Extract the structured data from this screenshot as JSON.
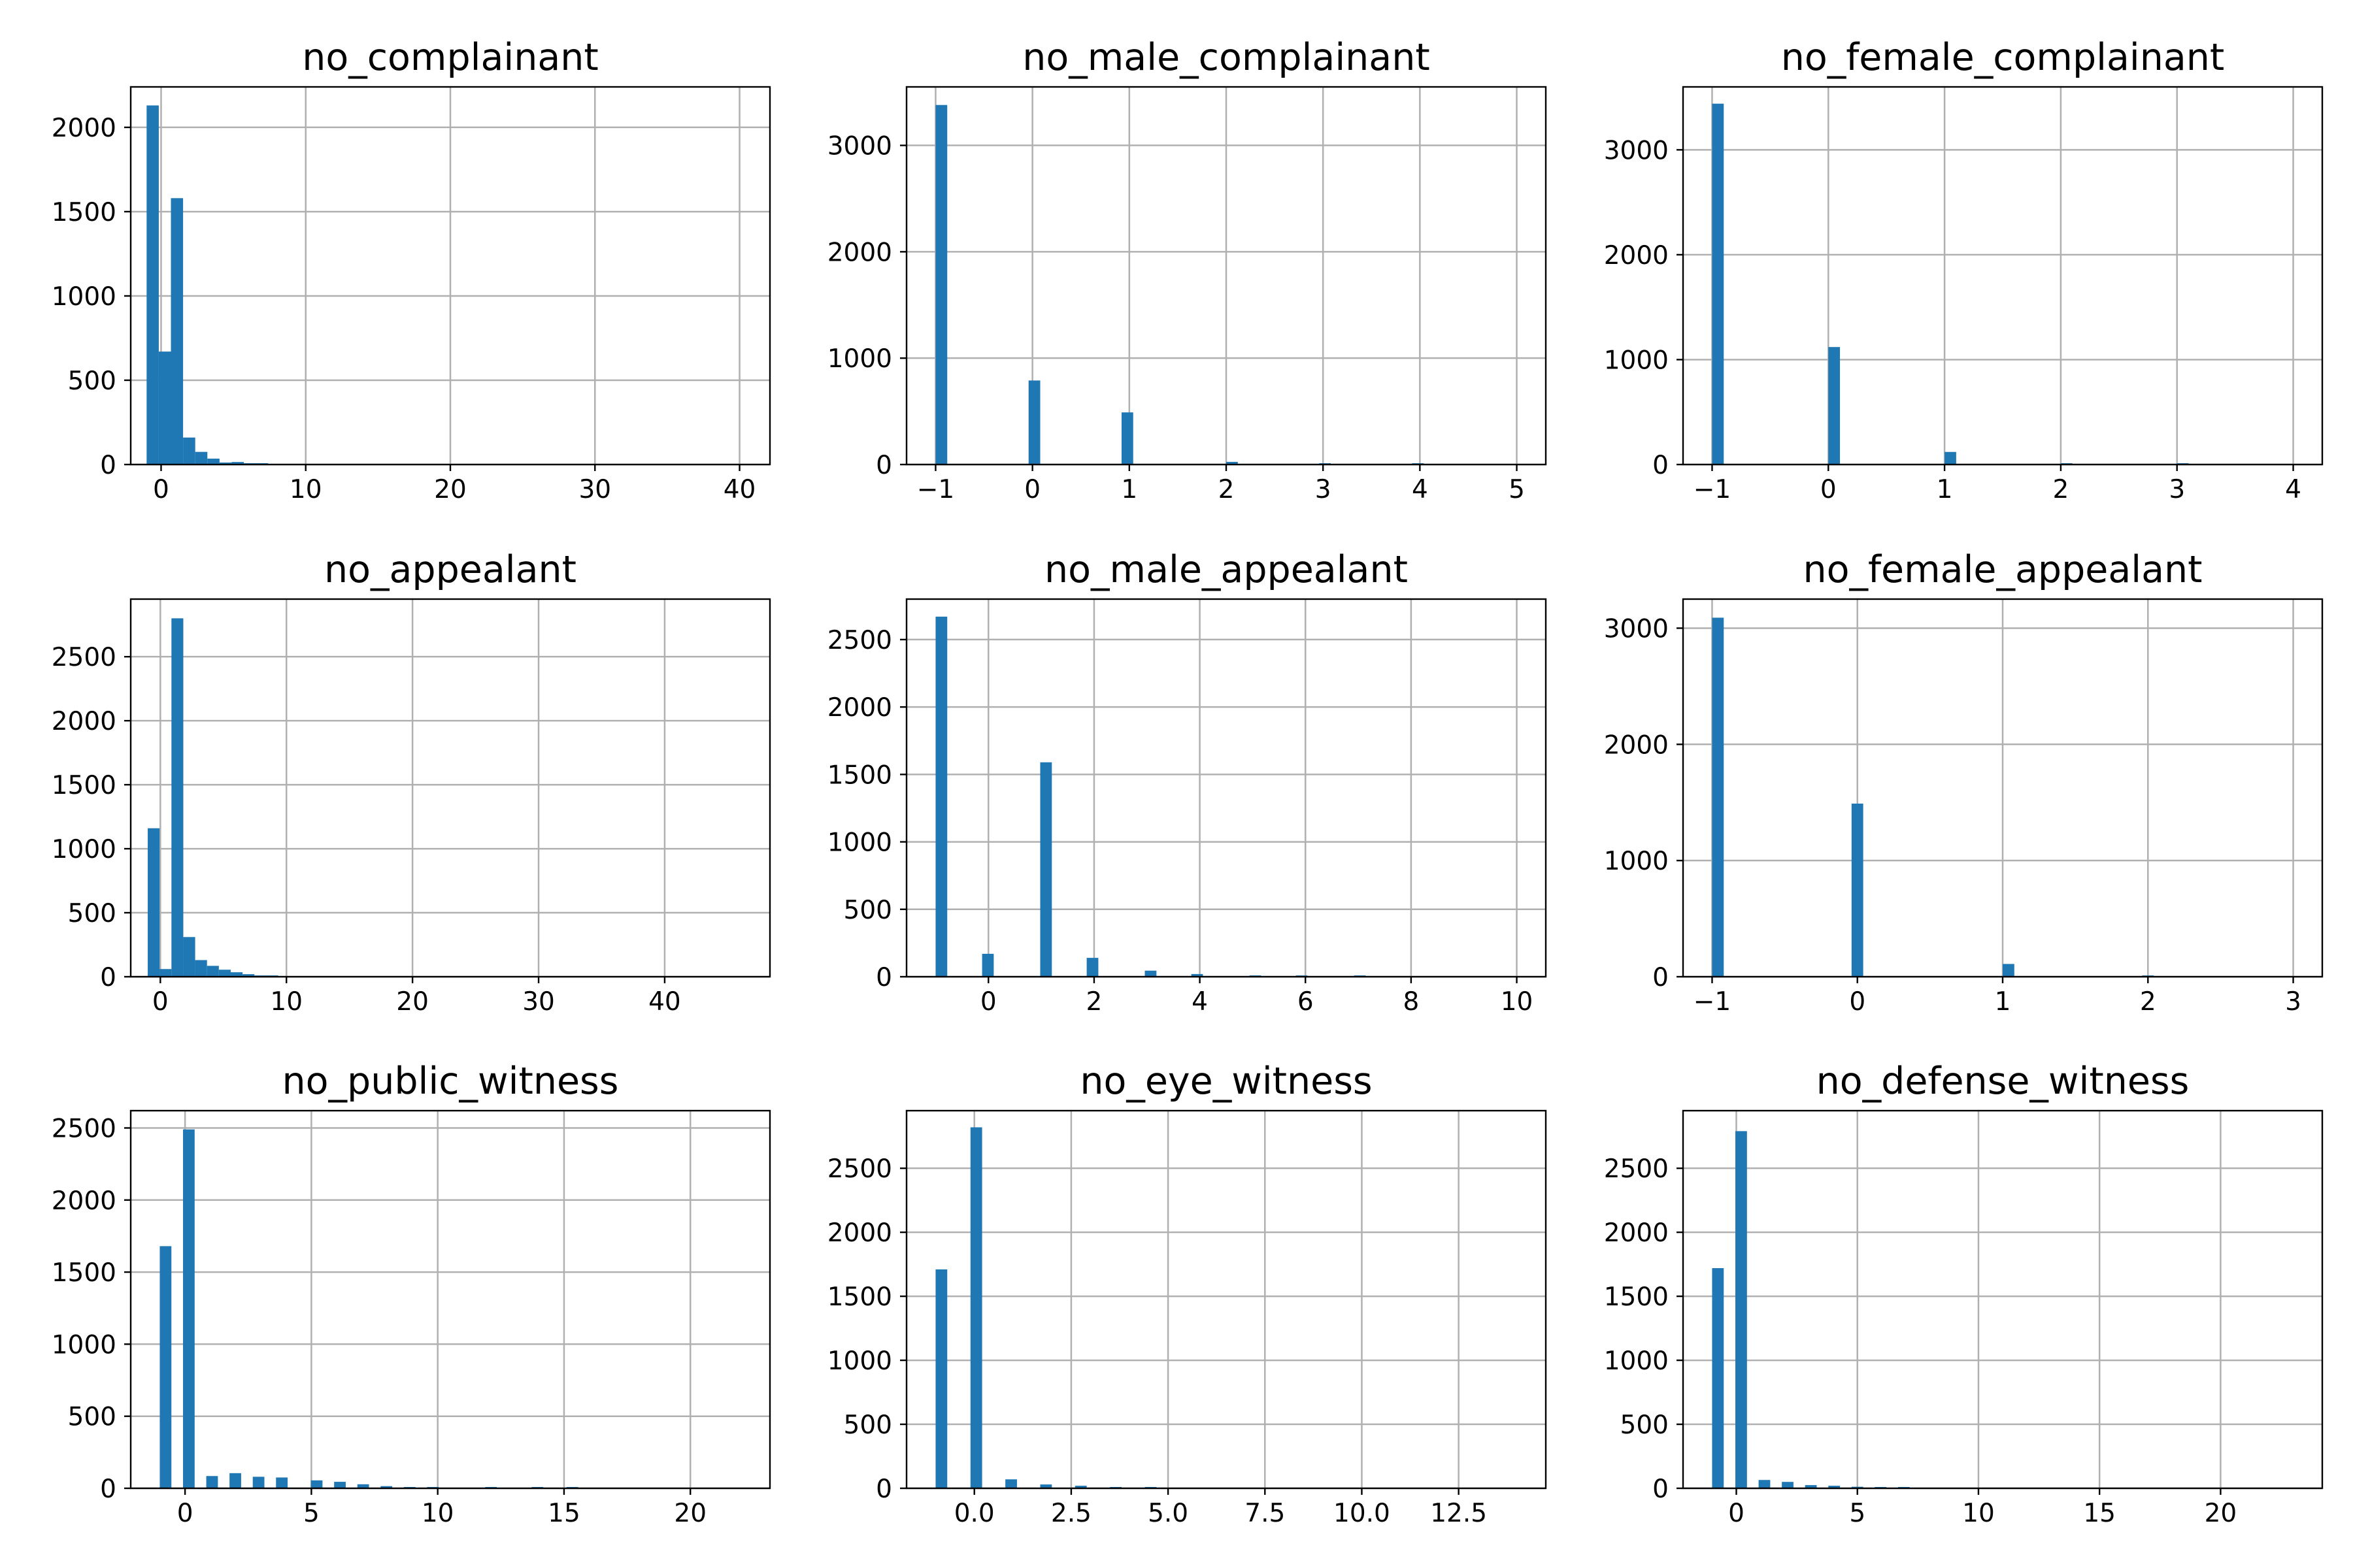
{
  "chart_data": [
    {
      "type": "bar",
      "title": "no_complainant",
      "xlim": [
        -2.1,
        42.1
      ],
      "ylim": [
        0,
        2240
      ],
      "xticks": [
        0,
        10,
        20,
        30,
        40
      ],
      "xtick_labels": [
        "0",
        "10",
        "20",
        "30",
        "40"
      ],
      "yticks": [
        0,
        500,
        1000,
        1500,
        2000
      ],
      "ytick_labels": [
        "0",
        "500",
        "1000",
        "1500",
        "2000"
      ],
      "bars": [
        {
          "x0": -1.0,
          "x1": -0.16,
          "value": 2130
        },
        {
          "x0": -0.16,
          "x1": 0.68,
          "value": 670
        },
        {
          "x0": 0.68,
          "x1": 1.52,
          "value": 1580
        },
        {
          "x0": 1.52,
          "x1": 2.36,
          "value": 160
        },
        {
          "x0": 2.36,
          "x1": 3.2,
          "value": 75
        },
        {
          "x0": 3.2,
          "x1": 4.04,
          "value": 35
        },
        {
          "x0": 4.04,
          "x1": 4.88,
          "value": 12
        },
        {
          "x0": 4.88,
          "x1": 5.72,
          "value": 15
        },
        {
          "x0": 5.72,
          "x1": 6.56,
          "value": 6
        },
        {
          "x0": 6.56,
          "x1": 7.4,
          "value": 3
        }
      ]
    },
    {
      "type": "bar",
      "title": "no_male_complainant",
      "xlim": [
        -1.3,
        5.3
      ],
      "ylim": [
        0,
        3550
      ],
      "xticks": [
        -1,
        0,
        1,
        2,
        3,
        4,
        5
      ],
      "xtick_labels": [
        "−1",
        "0",
        "1",
        "2",
        "3",
        "4",
        "5"
      ],
      "yticks": [
        0,
        1000,
        2000,
        3000
      ],
      "ytick_labels": [
        "0",
        "1000",
        "2000",
        "3000"
      ],
      "bars": [
        {
          "x0": -1.0,
          "x1": -0.88,
          "value": 3380
        },
        {
          "x0": -0.04,
          "x1": 0.08,
          "value": 790
        },
        {
          "x0": 0.92,
          "x1": 1.04,
          "value": 490
        },
        {
          "x0": 2.0,
          "x1": 2.12,
          "value": 25
        },
        {
          "x0": 2.96,
          "x1": 3.08,
          "value": 8
        },
        {
          "x0": 3.92,
          "x1": 4.04,
          "value": 3
        }
      ]
    },
    {
      "type": "bar",
      "title": "no_female_complainant",
      "xlim": [
        -1.25,
        4.25
      ],
      "ylim": [
        0,
        3600
      ],
      "xticks": [
        -1,
        0,
        1,
        2,
        3,
        4
      ],
      "xtick_labels": [
        "−1",
        "0",
        "1",
        "2",
        "3",
        "4"
      ],
      "yticks": [
        0,
        1000,
        2000,
        3000
      ],
      "ytick_labels": [
        "0",
        "1000",
        "2000",
        "3000"
      ],
      "bars": [
        {
          "x0": -1.0,
          "x1": -0.9,
          "value": 3440
        },
        {
          "x0": 0.0,
          "x1": 0.1,
          "value": 1120
        },
        {
          "x0": 1.0,
          "x1": 1.1,
          "value": 120
        },
        {
          "x0": 2.0,
          "x1": 2.1,
          "value": 8
        },
        {
          "x0": 3.0,
          "x1": 3.1,
          "value": 2
        }
      ]
    },
    {
      "type": "bar",
      "title": "no_appealant",
      "xlim": [
        -2.35,
        48.35
      ],
      "ylim": [
        0,
        2950
      ],
      "xticks": [
        0,
        10,
        20,
        30,
        40
      ],
      "xtick_labels": [
        "0",
        "10",
        "20",
        "30",
        "40"
      ],
      "yticks": [
        0,
        500,
        1000,
        1500,
        2000,
        2500
      ],
      "ytick_labels": [
        "0",
        "500",
        "1000",
        "1500",
        "2000",
        "2500"
      ],
      "bars": [
        {
          "x0": -1.0,
          "x1": -0.06,
          "value": 1160
        },
        {
          "x0": -0.06,
          "x1": 0.88,
          "value": 60
        },
        {
          "x0": 0.88,
          "x1": 1.82,
          "value": 2800
        },
        {
          "x0": 1.82,
          "x1": 2.76,
          "value": 310
        },
        {
          "x0": 2.76,
          "x1": 3.7,
          "value": 130
        },
        {
          "x0": 3.7,
          "x1": 4.64,
          "value": 85
        },
        {
          "x0": 4.64,
          "x1": 5.58,
          "value": 55
        },
        {
          "x0": 5.58,
          "x1": 6.52,
          "value": 35
        },
        {
          "x0": 6.52,
          "x1": 7.46,
          "value": 20
        },
        {
          "x0": 7.46,
          "x1": 8.4,
          "value": 10
        },
        {
          "x0": 8.4,
          "x1": 9.34,
          "value": 6
        }
      ]
    },
    {
      "type": "bar",
      "title": "no_male_appealant",
      "xlim": [
        -1.55,
        10.55
      ],
      "ylim": [
        0,
        2800
      ],
      "xticks": [
        0,
        2,
        4,
        6,
        8,
        10
      ],
      "xtick_labels": [
        "0",
        "2",
        "4",
        "6",
        "8",
        "10"
      ],
      "yticks": [
        0,
        500,
        1000,
        1500,
        2000,
        2500
      ],
      "ytick_labels": [
        "0",
        "500",
        "1000",
        "1500",
        "2000",
        "2500"
      ],
      "bars": [
        {
          "x0": -1.0,
          "x1": -0.78,
          "value": 2670
        },
        {
          "x0": -0.12,
          "x1": 0.1,
          "value": 170
        },
        {
          "x0": 0.98,
          "x1": 1.2,
          "value": 1590
        },
        {
          "x0": 1.86,
          "x1": 2.08,
          "value": 140
        },
        {
          "x0": 2.96,
          "x1": 3.18,
          "value": 45
        },
        {
          "x0": 3.84,
          "x1": 4.06,
          "value": 20
        },
        {
          "x0": 4.94,
          "x1": 5.16,
          "value": 10
        },
        {
          "x0": 5.82,
          "x1": 6.04,
          "value": 5
        },
        {
          "x0": 6.92,
          "x1": 7.14,
          "value": 2
        }
      ]
    },
    {
      "type": "bar",
      "title": "no_female_appealant",
      "xlim": [
        -1.2,
        3.2
      ],
      "ylim": [
        0,
        3250
      ],
      "xticks": [
        -1,
        0,
        1,
        2,
        3
      ],
      "xtick_labels": [
        "−1",
        "0",
        "1",
        "2",
        "3"
      ],
      "yticks": [
        0,
        1000,
        2000,
        3000
      ],
      "ytick_labels": [
        "0",
        "1000",
        "2000",
        "3000"
      ],
      "bars": [
        {
          "x0": -1.0,
          "x1": -0.92,
          "value": 3090
        },
        {
          "x0": -0.04,
          "x1": 0.04,
          "value": 1490
        },
        {
          "x0": 1.0,
          "x1": 1.08,
          "value": 110
        },
        {
          "x0": 1.96,
          "x1": 2.04,
          "value": 5
        }
      ]
    },
    {
      "type": "bar",
      "title": "no_public_witness",
      "xlim": [
        -2.15,
        23.15
      ],
      "ylim": [
        0,
        2620
      ],
      "xticks": [
        0,
        5,
        10,
        15,
        20
      ],
      "xtick_labels": [
        "0",
        "5",
        "10",
        "15",
        "20"
      ],
      "yticks": [
        0,
        500,
        1000,
        1500,
        2000,
        2500
      ],
      "ytick_labels": [
        "0",
        "500",
        "1000",
        "1500",
        "2000",
        "2500"
      ],
      "bars": [
        {
          "x0": -1.0,
          "x1": -0.54,
          "value": 1680
        },
        {
          "x0": -0.08,
          "x1": 0.38,
          "value": 2490
        },
        {
          "x0": 0.84,
          "x1": 1.3,
          "value": 85
        },
        {
          "x0": 1.76,
          "x1": 2.22,
          "value": 105
        },
        {
          "x0": 2.68,
          "x1": 3.14,
          "value": 80
        },
        {
          "x0": 3.6,
          "x1": 4.06,
          "value": 75
        },
        {
          "x0": 4.98,
          "x1": 5.44,
          "value": 55
        },
        {
          "x0": 5.9,
          "x1": 6.36,
          "value": 45
        },
        {
          "x0": 6.82,
          "x1": 7.28,
          "value": 28
        },
        {
          "x0": 7.74,
          "x1": 8.2,
          "value": 15
        },
        {
          "x0": 8.66,
          "x1": 9.12,
          "value": 8
        },
        {
          "x0": 9.58,
          "x1": 10.04,
          "value": 5
        },
        {
          "x0": 11.88,
          "x1": 12.34,
          "value": 8
        },
        {
          "x0": 13.72,
          "x1": 14.18,
          "value": 3
        },
        {
          "x0": 15.1,
          "x1": 15.56,
          "value": 2
        }
      ]
    },
    {
      "type": "bar",
      "title": "no_eye_witness",
      "xlim": [
        -1.75,
        14.75
      ],
      "ylim": [
        0,
        2950
      ],
      "xticks": [
        0.0,
        2.5,
        5.0,
        7.5,
        10.0,
        12.5
      ],
      "xtick_labels": [
        "0.0",
        "2.5",
        "5.0",
        "7.5",
        "10.0",
        "12.5"
      ],
      "yticks": [
        0,
        500,
        1000,
        1500,
        2000,
        2500
      ],
      "ytick_labels": [
        "0",
        "500",
        "1000",
        "1500",
        "2000",
        "2500"
      ],
      "bars": [
        {
          "x0": -1.0,
          "x1": -0.7,
          "value": 1710
        },
        {
          "x0": -0.1,
          "x1": 0.2,
          "value": 2820
        },
        {
          "x0": 0.8,
          "x1": 1.1,
          "value": 70
        },
        {
          "x0": 1.7,
          "x1": 2.0,
          "value": 30
        },
        {
          "x0": 2.6,
          "x1": 2.9,
          "value": 20
        },
        {
          "x0": 3.5,
          "x1": 3.8,
          "value": 8
        },
        {
          "x0": 4.4,
          "x1": 4.7,
          "value": 4
        }
      ]
    },
    {
      "type": "bar",
      "title": "no_defense_witness",
      "xlim": [
        -2.2,
        24.2
      ],
      "ylim": [
        0,
        2950
      ],
      "xticks": [
        0,
        5,
        10,
        15,
        20
      ],
      "xtick_labels": [
        "0",
        "5",
        "10",
        "15",
        "20"
      ],
      "yticks": [
        0,
        500,
        1000,
        1500,
        2000,
        2500
      ],
      "ytick_labels": [
        "0",
        "500",
        "1000",
        "1500",
        "2000",
        "2500"
      ],
      "bars": [
        {
          "x0": -1.0,
          "x1": -0.52,
          "value": 1720
        },
        {
          "x0": -0.04,
          "x1": 0.44,
          "value": 2790
        },
        {
          "x0": 0.92,
          "x1": 1.4,
          "value": 65
        },
        {
          "x0": 1.88,
          "x1": 2.36,
          "value": 50
        },
        {
          "x0": 2.84,
          "x1": 3.32,
          "value": 25
        },
        {
          "x0": 3.8,
          "x1": 4.28,
          "value": 20
        },
        {
          "x0": 4.76,
          "x1": 5.24,
          "value": 12
        },
        {
          "x0": 5.72,
          "x1": 6.2,
          "value": 5
        },
        {
          "x0": 6.68,
          "x1": 7.16,
          "value": 3
        }
      ]
    }
  ],
  "colors": {
    "bar": "#1f77b4",
    "grid": "#b0b0b0",
    "axes": "#000000"
  }
}
